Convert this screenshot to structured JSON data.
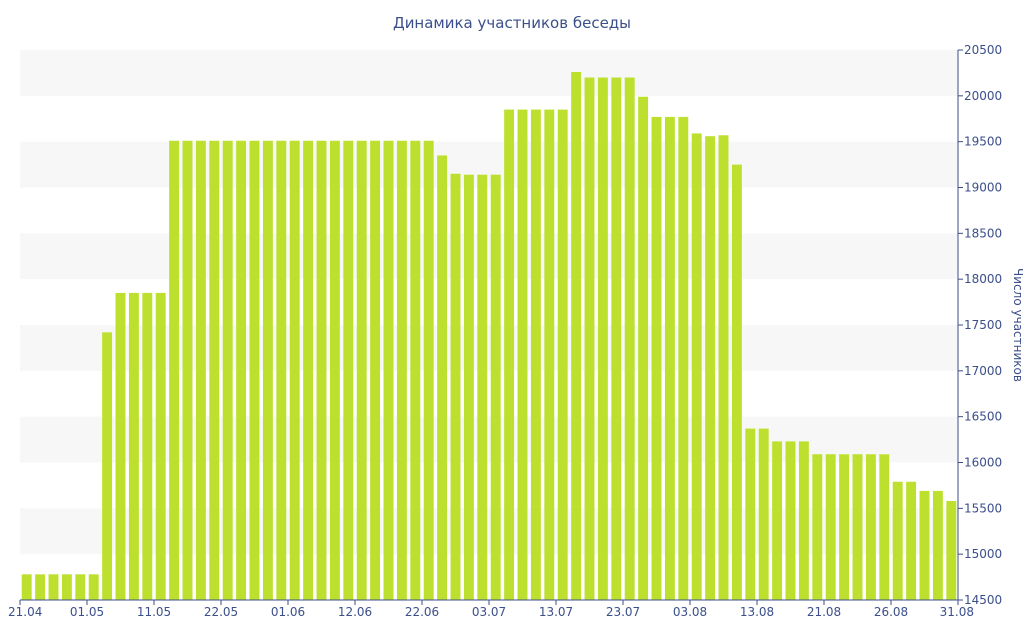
{
  "chart_data": {
    "type": "bar",
    "title": "Динамика участников беседы",
    "xlabel": "",
    "ylabel": "Число участников",
    "ylim": [
      14500,
      20500
    ],
    "yticks": [
      14500,
      15000,
      15500,
      16000,
      16500,
      17000,
      17500,
      18000,
      18500,
      19000,
      19500,
      20000,
      20500
    ],
    "y_axis_side": "right",
    "alternating_bands": true,
    "bar_color": "#bde02f",
    "text_color": "#3b4f8a",
    "x_tick_labels": [
      "21.04",
      "01.05",
      "11.05",
      "22.05",
      "01.06",
      "12.06",
      "22.06",
      "03.07",
      "13.07",
      "23.07",
      "03.08",
      "13.08",
      "21.08",
      "26.08",
      "31.08"
    ],
    "values": [
      14780,
      14780,
      14780,
      14780,
      14780,
      14780,
      17420,
      17850,
      17850,
      17850,
      17850,
      19510,
      19510,
      19510,
      19510,
      19510,
      19510,
      19510,
      19510,
      19510,
      19510,
      19510,
      19510,
      19510,
      19510,
      19510,
      19510,
      19510,
      19510,
      19510,
      19510,
      19350,
      19150,
      19140,
      19140,
      19140,
      19850,
      19850,
      19850,
      19850,
      19850,
      20260,
      20200,
      20200,
      20200,
      20200,
      19990,
      19770,
      19770,
      19770,
      19590,
      19560,
      19570,
      19250,
      16370,
      16370,
      16230,
      16230,
      16230,
      16090,
      16090,
      16090,
      16090,
      16090,
      16090,
      15790,
      15790,
      15690,
      15690,
      15580
    ]
  }
}
